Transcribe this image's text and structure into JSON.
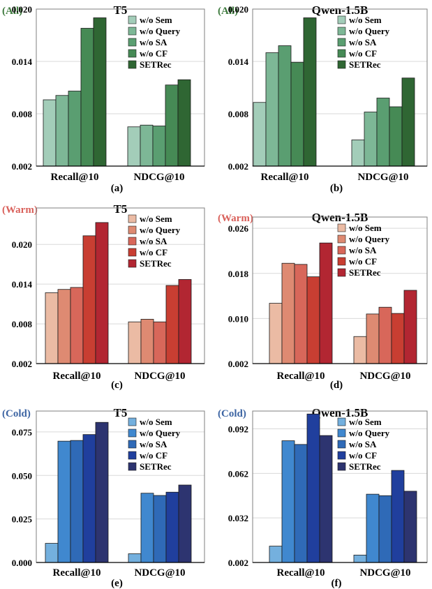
{
  "figure": {
    "legend_labels": [
      "w/o Sem",
      "w/o Query",
      "w/o SA",
      "w/o CF",
      "SETRec"
    ],
    "categories": [
      "Recall@10",
      "NDCG@10"
    ],
    "group_colors": {
      "All": {
        "tag_color": "#3d7a3d",
        "series": [
          "#a3cdb9",
          "#7db796",
          "#5a9e71",
          "#468a55",
          "#2f6633"
        ]
      },
      "Warm": {
        "tag_color": "#d9605a",
        "series": [
          "#ebbba4",
          "#de8a72",
          "#d8675a",
          "#c83e32",
          "#b22632"
        ]
      },
      "Cold": {
        "tag_color": "#3d65a3",
        "series": [
          "#74b0de",
          "#4088cf",
          "#2f6ab7",
          "#203f9d",
          "#2d3470"
        ]
      }
    }
  },
  "chart_data": [
    {
      "type": "bar",
      "panel_label": "(a)",
      "group_tag": "(All)",
      "group": "All",
      "title": "T5",
      "categories": [
        "Recall@10",
        "NDCG@10"
      ],
      "ylim": [
        0.002,
        0.02
      ],
      "yticks": [
        "0.002",
        "0.008",
        "0.014",
        "0.020"
      ],
      "series": [
        {
          "name": "w/o Sem",
          "values": [
            0.0096,
            0.0065
          ]
        },
        {
          "name": "w/o Query",
          "values": [
            0.0101,
            0.0067
          ]
        },
        {
          "name": "w/o SA",
          "values": [
            0.0106,
            0.0066
          ]
        },
        {
          "name": "w/o CF",
          "values": [
            0.0178,
            0.0113
          ]
        },
        {
          "name": "SETRec",
          "values": [
            0.019,
            0.0119
          ]
        }
      ]
    },
    {
      "type": "bar",
      "panel_label": "(b)",
      "group_tag": "(All)",
      "group": "All",
      "title": "Qwen-1.5B",
      "categories": [
        "Recall@10",
        "NDCG@10"
      ],
      "ylim": [
        0.002,
        0.02
      ],
      "yticks": [
        "0.002",
        "0.008",
        "0.014",
        "0.020"
      ],
      "series": [
        {
          "name": "w/o Sem",
          "values": [
            0.0093,
            0.005
          ]
        },
        {
          "name": "w/o Query",
          "values": [
            0.015,
            0.0082
          ]
        },
        {
          "name": "w/o SA",
          "values": [
            0.0158,
            0.0098
          ]
        },
        {
          "name": "w/o CF",
          "values": [
            0.0139,
            0.0088
          ]
        },
        {
          "name": "SETRec",
          "values": [
            0.019,
            0.0121
          ]
        }
      ]
    },
    {
      "type": "bar",
      "panel_label": "(c)",
      "group_tag": "(Warm)",
      "group": "Warm",
      "title": "T5",
      "categories": [
        "Recall@10",
        "NDCG@10"
      ],
      "ylim": [
        0.002,
        0.0255
      ],
      "yticks": [
        "0.002",
        "0.008",
        "0.014",
        "0.020"
      ],
      "series": [
        {
          "name": "w/o Sem",
          "values": [
            0.0127,
            0.0083
          ]
        },
        {
          "name": "w/o Query",
          "values": [
            0.0132,
            0.0087
          ]
        },
        {
          "name": "w/o SA",
          "values": [
            0.0135,
            0.0083
          ]
        },
        {
          "name": "w/o CF",
          "values": [
            0.0213,
            0.0138
          ]
        },
        {
          "name": "SETRec",
          "values": [
            0.0233,
            0.0147
          ]
        }
      ]
    },
    {
      "type": "bar",
      "panel_label": "(d)",
      "group_tag": "(Warm)",
      "group": "Warm",
      "title": "Qwen-1.5B",
      "categories": [
        "Recall@10",
        "NDCG@10"
      ],
      "ylim": [
        0.002,
        0.028
      ],
      "yticks": [
        "0.002",
        "0.010",
        "0.018",
        "0.026"
      ],
      "series": [
        {
          "name": "w/o Sem",
          "values": [
            0.0127,
            0.0068
          ]
        },
        {
          "name": "w/o Query",
          "values": [
            0.0198,
            0.0108
          ]
        },
        {
          "name": "w/o SA",
          "values": [
            0.0196,
            0.012
          ]
        },
        {
          "name": "w/o CF",
          "values": [
            0.0174,
            0.0109
          ]
        },
        {
          "name": "SETRec",
          "values": [
            0.0234,
            0.015
          ]
        }
      ]
    },
    {
      "type": "bar",
      "panel_label": "(e)",
      "group_tag": "(Cold)",
      "group": "Cold",
      "title": "T5",
      "categories": [
        "Recall@10",
        "NDCG@10"
      ],
      "ylim": [
        0.0,
        0.087
      ],
      "yticks": [
        "0.000",
        "0.025",
        "0.050",
        "0.075"
      ],
      "series": [
        {
          "name": "w/o Sem",
          "values": [
            0.011,
            0.005
          ]
        },
        {
          "name": "w/o Query",
          "values": [
            0.0697,
            0.0398
          ]
        },
        {
          "name": "w/o SA",
          "values": [
            0.0701,
            0.0385
          ]
        },
        {
          "name": "w/o CF",
          "values": [
            0.0735,
            0.0404
          ]
        },
        {
          "name": "SETRec",
          "values": [
            0.0805,
            0.0445
          ]
        }
      ]
    },
    {
      "type": "bar",
      "panel_label": "(f)",
      "group_tag": "(Cold)",
      "group": "Cold",
      "title": "Qwen-1.5B",
      "categories": [
        "Recall@10",
        "NDCG@10"
      ],
      "ylim": [
        0.002,
        0.104
      ],
      "yticks": [
        "0.002",
        "0.032",
        "0.062",
        "0.092"
      ],
      "series": [
        {
          "name": "w/o Sem",
          "values": [
            0.013,
            0.007
          ]
        },
        {
          "name": "w/o Query",
          "values": [
            0.084,
            0.048
          ]
        },
        {
          "name": "w/o SA",
          "values": [
            0.0815,
            0.047
          ]
        },
        {
          "name": "w/o CF",
          "values": [
            0.102,
            0.064
          ]
        },
        {
          "name": "SETRec",
          "values": [
            0.0875,
            0.05
          ]
        }
      ]
    }
  ]
}
